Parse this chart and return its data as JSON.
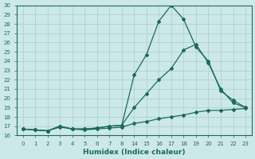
{
  "xlabel": "Humidex (Indice chaleur)",
  "bg_color": "#cce8e8",
  "grid_color": "#aacccc",
  "line_color": "#1a6b5a",
  "x_labels": [
    0,
    1,
    2,
    3,
    4,
    5,
    6,
    7,
    8,
    14,
    15,
    16,
    17,
    18,
    19,
    20,
    21,
    22,
    23
  ],
  "ylim": [
    16,
    30
  ],
  "yticks": [
    16,
    17,
    18,
    19,
    20,
    21,
    22,
    23,
    24,
    25,
    26,
    27,
    28,
    29,
    30
  ],
  "series": {
    "max": {
      "xi": [
        0,
        1,
        2,
        3,
        4,
        5,
        6,
        7,
        8,
        9,
        10,
        11,
        12,
        13,
        14,
        15,
        16,
        17,
        18
      ],
      "y": [
        16.7,
        16.6,
        16.5,
        17.0,
        16.7,
        16.7,
        16.8,
        17.0,
        17.1,
        22.5,
        24.7,
        28.3,
        30.0,
        28.5,
        25.5,
        24.0,
        20.8,
        19.8,
        19.0
      ]
    },
    "mean": {
      "xi": [
        0,
        1,
        2,
        3,
        4,
        5,
        6,
        7,
        8,
        9,
        10,
        11,
        12,
        13,
        14,
        15,
        16,
        17,
        18
      ],
      "y": [
        16.7,
        16.6,
        16.5,
        17.0,
        16.7,
        16.7,
        16.8,
        17.0,
        17.1,
        19.0,
        20.5,
        22.0,
        23.2,
        25.2,
        25.8,
        23.8,
        21.0,
        19.5,
        19.0
      ]
    },
    "min": {
      "xi": [
        0,
        1,
        2,
        3,
        4,
        5,
        6,
        7,
        8,
        9,
        10,
        11,
        12,
        13,
        14,
        15,
        16,
        17,
        18
      ],
      "y": [
        16.7,
        16.6,
        16.5,
        16.9,
        16.7,
        16.6,
        16.7,
        16.8,
        16.9,
        17.3,
        17.5,
        17.8,
        18.0,
        18.2,
        18.5,
        18.7,
        18.7,
        18.8,
        18.9
      ]
    }
  }
}
